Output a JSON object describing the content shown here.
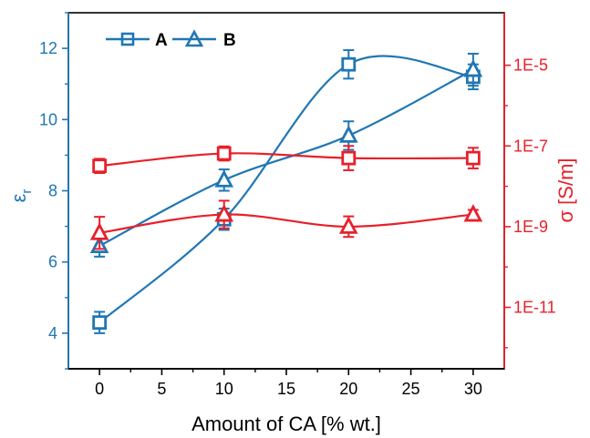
{
  "chart_data": {
    "type": "scatter",
    "xlabel": "Amount of CA [% wt.]",
    "x_ticks": [
      0,
      5,
      10,
      15,
      20,
      25,
      30
    ],
    "xlim": [
      -2.5,
      32.5
    ],
    "y_left": {
      "label_main": "ε",
      "label_sub": "r",
      "ticks": [
        4,
        6,
        8,
        10,
        12
      ],
      "ylim": [
        3,
        13
      ],
      "color": "#1F77B4"
    },
    "y_right": {
      "label": "σ [S/m]",
      "scale": "log",
      "ticks": [
        1e-11,
        1e-09,
        1e-07,
        1e-05
      ],
      "tick_labels": [
        "1E-11",
        "1E-9",
        "1E-7",
        "1E-5"
      ],
      "ylim": [
        3e-13,
        0.0002
      ],
      "color": "#E8202A"
    },
    "legend_position": "top-left",
    "series": [
      {
        "name": "A",
        "axis": "left",
        "marker": "square",
        "color": "#1F77B4",
        "x": [
          0,
          10,
          20,
          30
        ],
        "y": [
          4.3,
          7.2,
          11.55,
          11.2
        ],
        "yerr": [
          0.3,
          0.3,
          0.4,
          0.35
        ]
      },
      {
        "name": "B",
        "axis": "left",
        "marker": "triangle",
        "color": "#1F77B4",
        "x": [
          0,
          10,
          20,
          30
        ],
        "y": [
          6.45,
          8.3,
          9.55,
          11.4
        ],
        "yerr": [
          0.3,
          0.3,
          0.4,
          0.45
        ]
      },
      {
        "name": "",
        "axis": "right",
        "marker": "square",
        "color": "#E8202A",
        "x": [
          0,
          10,
          20,
          30
        ],
        "y": [
          3.2e-08,
          6.5e-08,
          5e-08,
          5e-08
        ],
        "yerr_factor": [
          1.5,
          1.5,
          2.0,
          1.8
        ]
      },
      {
        "name": "",
        "axis": "right",
        "marker": "triangle",
        "color": "#E8202A",
        "x": [
          0,
          10,
          20,
          30
        ],
        "y": [
          7e-10,
          2e-09,
          1e-09,
          2e-09
        ],
        "yerr_factor": [
          2.5,
          2.2,
          1.8,
          1.3
        ]
      }
    ]
  }
}
